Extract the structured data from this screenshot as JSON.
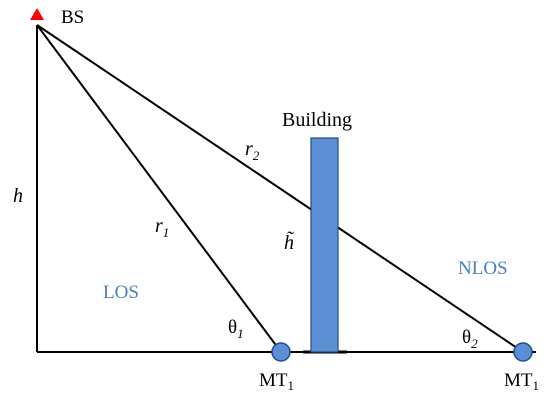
{
  "diagram": {
    "labels": {
      "base_station": "BS",
      "height": "h",
      "building": "Building",
      "building_height": "h̃",
      "r1_base": "r",
      "r1_sub": "1",
      "r2_base": "r",
      "r2_sub": "2",
      "los": "LOS",
      "nlos": "NLOS",
      "theta1_base": "θ",
      "theta1_sub": "1",
      "theta2_base": "θ",
      "theta2_sub": "2",
      "mt1_base": "MT",
      "mt1_sub": "1",
      "mt2_base": "MT",
      "mt2_sub": "1"
    },
    "colors": {
      "building_fill": "#5b8fd4",
      "building_stroke": "#1f4f8a",
      "terminal_fill": "#5b8fd4",
      "bs_marker": "#ff0000",
      "region_text": "#4a7ebf"
    }
  }
}
